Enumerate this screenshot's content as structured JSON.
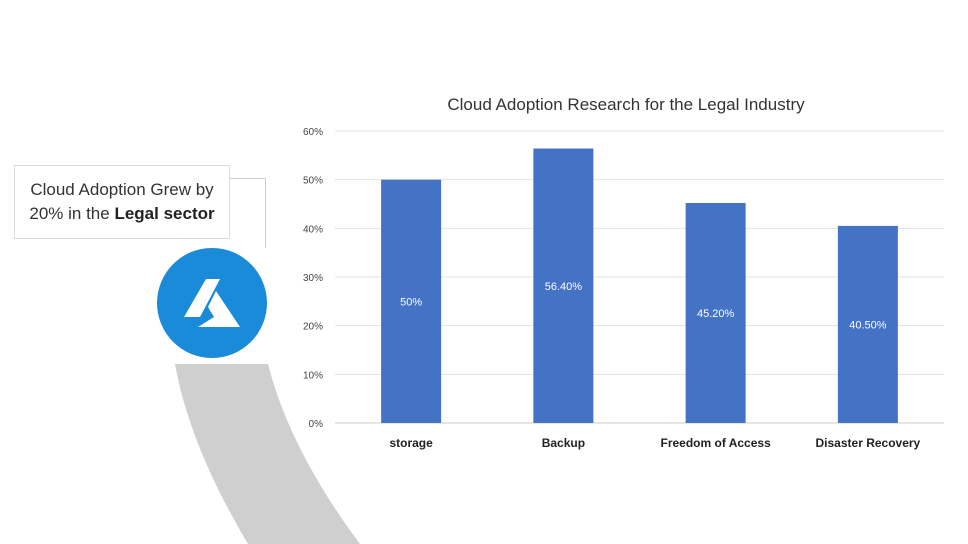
{
  "callout": {
    "line1": "Cloud Adoption Grew by",
    "line2_prefix": "20% in the",
    "line2_bold": "Legal sector"
  },
  "logo": {
    "icon": "azure-logo-icon",
    "color": "#1a8bd8"
  },
  "chart_data": {
    "type": "bar",
    "title": "Cloud Adoption Research for the Legal Industry",
    "categories": [
      "storage",
      "Backup",
      "Freedom of Access",
      "Disaster Recovery"
    ],
    "values": [
      50,
      56.4,
      45.2,
      40.5
    ],
    "data_labels": [
      "50%",
      "56.40%",
      "45.20%",
      "40.50%"
    ],
    "y_ticks": [
      "0%",
      "10%",
      "20%",
      "30%",
      "40%",
      "50%",
      "60%"
    ],
    "ylim": [
      0,
      60
    ],
    "grid": true,
    "legend": "none",
    "bar_color": "#4472c4"
  }
}
